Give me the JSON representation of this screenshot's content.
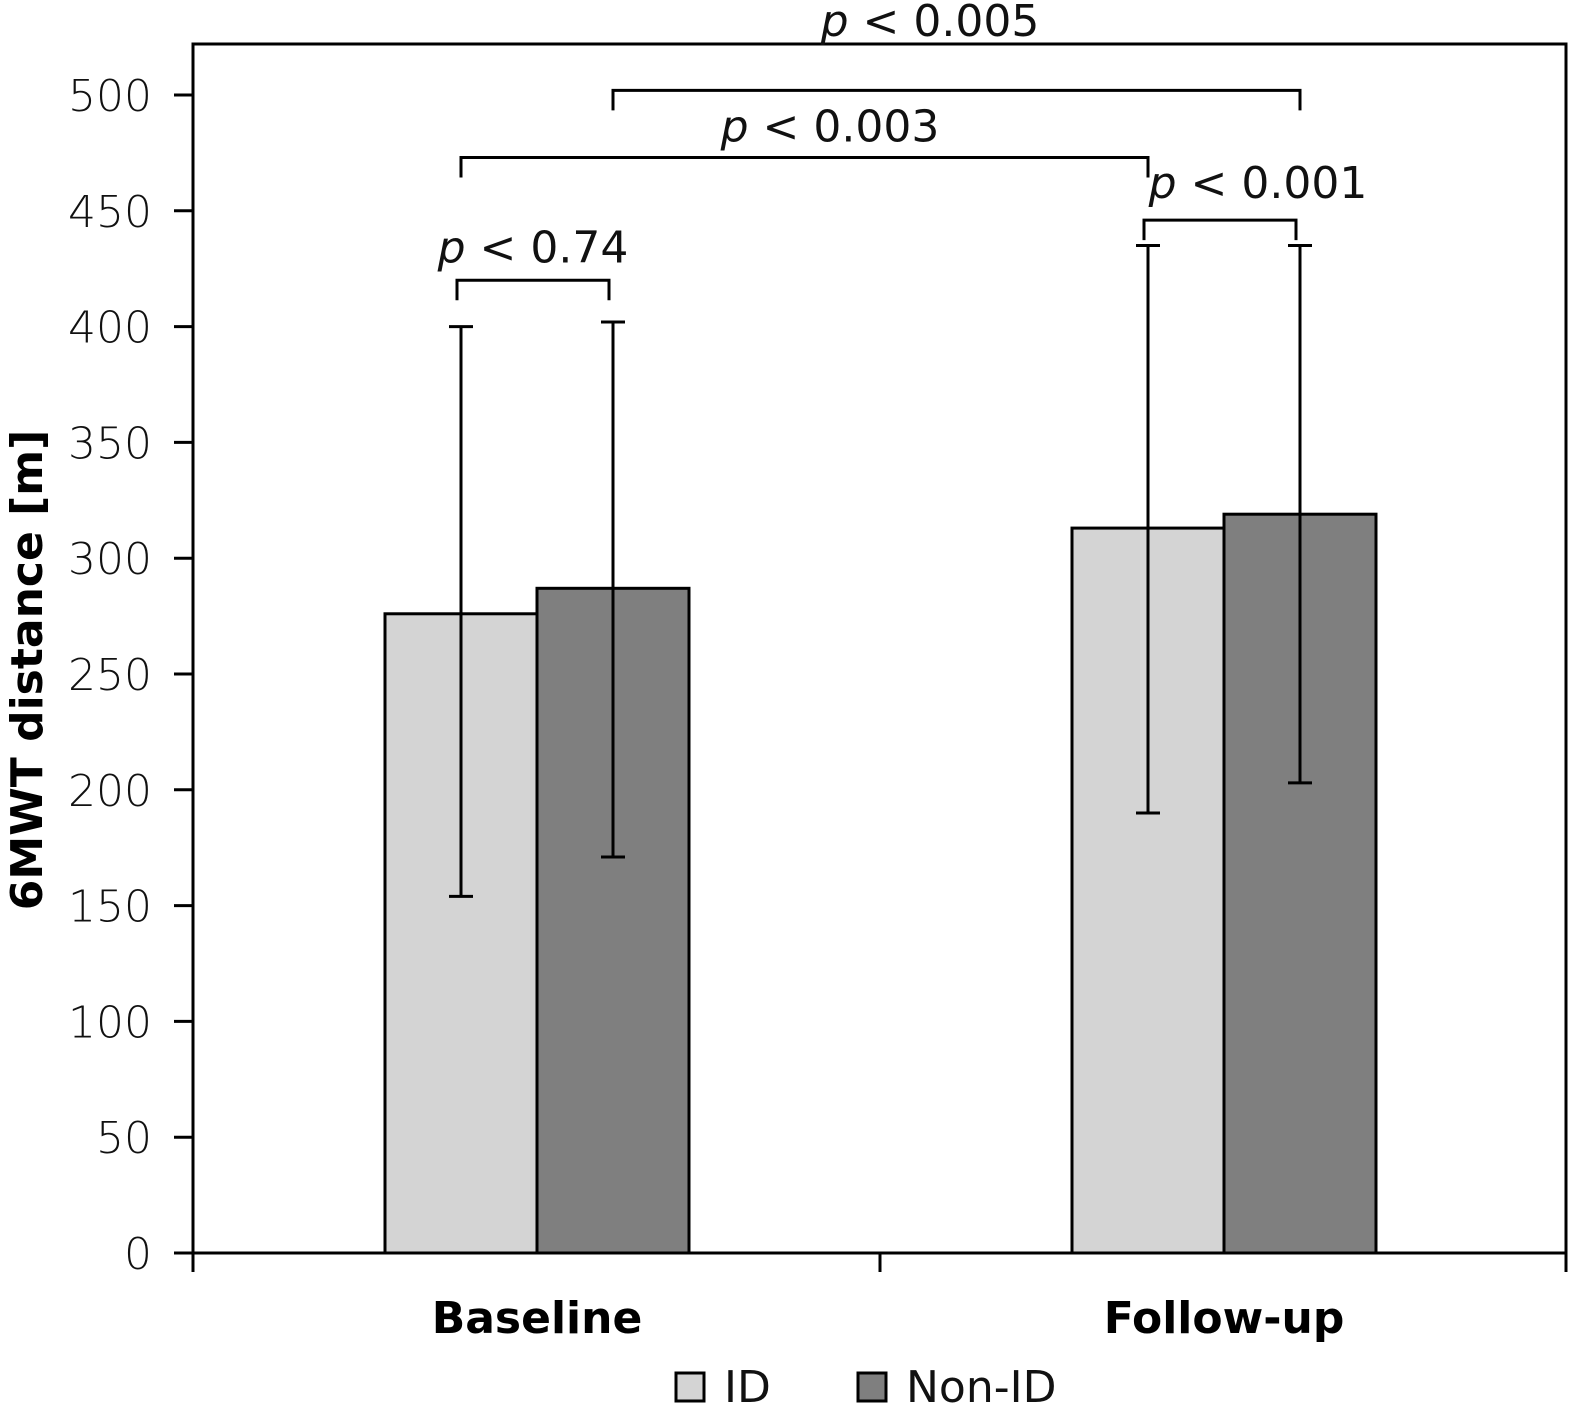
{
  "chart_data": {
    "type": "bar",
    "title": "",
    "xlabel": "",
    "ylabel": "6MWT distance [m]",
    "ylim": [
      0,
      500
    ],
    "yticks": [
      0,
      50,
      100,
      150,
      200,
      250,
      300,
      350,
      400,
      450,
      500
    ],
    "grid": false,
    "categories": [
      "Baseline",
      "Follow-up"
    ],
    "series": [
      {
        "name": "ID",
        "color": "#d4d4d4",
        "values": [
          276,
          313
        ],
        "error_low": [
          154,
          190
        ],
        "error_high": [
          400,
          435
        ]
      },
      {
        "name": "Non-ID",
        "color": "#7f7f7f",
        "values": [
          287,
          319
        ],
        "error_low": [
          171,
          203
        ],
        "error_high": [
          402,
          435
        ]
      }
    ],
    "annotations": [
      {
        "text_p": "p",
        "text_rest": " < 0.74",
        "from": {
          "category": 0,
          "series": 0
        },
        "to": {
          "category": 0,
          "series": 1
        },
        "level": 420
      },
      {
        "text_p": "p",
        "text_rest": " < 0.001",
        "from": {
          "category": 1,
          "series": 0
        },
        "to": {
          "category": 1,
          "series": 1
        },
        "level": 446
      },
      {
        "text_p": "p",
        "text_rest": " < 0.003",
        "from": {
          "category": 0,
          "series": 0
        },
        "to": {
          "category": 1,
          "series": 0
        },
        "level": 473
      },
      {
        "text_p": "p",
        "text_rest": " < 0.005",
        "from": {
          "category": 0,
          "series": 1
        },
        "to": {
          "category": 1,
          "series": 1
        },
        "level": 502
      }
    ],
    "legend": {
      "position": "bottom-center",
      "entries": [
        "ID",
        "Non-ID"
      ]
    }
  }
}
